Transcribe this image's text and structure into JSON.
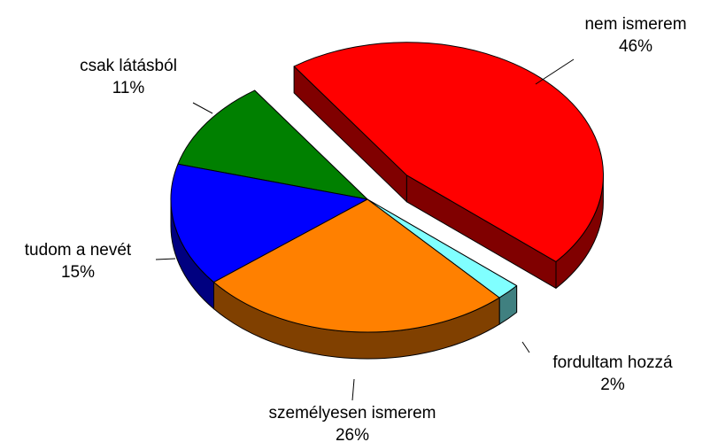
{
  "chart_data": {
    "type": "pie",
    "categories": [
      "nem ismerem",
      "fordultam hozzá",
      "személyesen ismerem",
      "tudom a nevét",
      "csak látásból"
    ],
    "values": [
      46,
      2,
      26,
      15,
      11
    ],
    "value_labels": [
      "46%",
      "2%",
      "26%",
      "15%",
      "11%"
    ],
    "colors": [
      "#ff0000",
      "#80ffff",
      "#ff8000",
      "#0000ff",
      "#008000"
    ],
    "explode": [
      true,
      false,
      false,
      false,
      false
    ]
  }
}
